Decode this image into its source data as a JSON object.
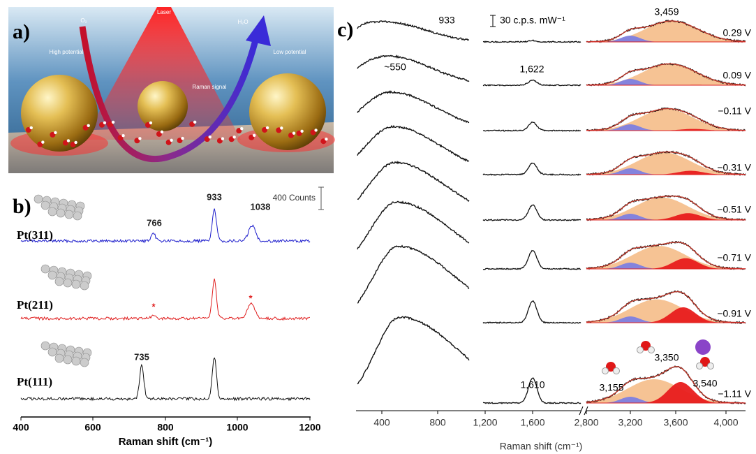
{
  "panel_a": {
    "label": "a)",
    "texts": {
      "o2": "O₂",
      "laser": "Laser",
      "h2o": "H₂O",
      "high_potential": "High potential",
      "low_potential": "Low potential",
      "raman_signal": "Raman signal"
    }
  },
  "panel_b": {
    "label": "b)",
    "scale_bar": "400 Counts",
    "x_axis": {
      "title": "Raman shift (cm⁻¹)",
      "ticks": [
        "400",
        "600",
        "800",
        "1000",
        "1200"
      ]
    },
    "spectra": [
      {
        "name": "Pt(311)",
        "peaks": [
          "766",
          "933",
          "1038"
        ]
      },
      {
        "name": "Pt(211)",
        "peaks": [
          "*",
          "*"
        ]
      },
      {
        "name": "Pt(111)",
        "peaks": [
          "735"
        ]
      }
    ]
  },
  "panel_c": {
    "label": "c)",
    "scale_bar": "30 c.p.s. mW⁻¹",
    "x_axis": {
      "title": "Raman shift (cm⁻¹)",
      "ticks": [
        "400",
        "800",
        "1,200",
        "1,600",
        "2,800",
        "3,200",
        "3,600",
        "4,000"
      ]
    },
    "potentials": [
      "0.29 V",
      "0.09 V",
      "−0.11 V",
      "−0.31 V",
      "−0.51 V",
      "−0.71 V",
      "−0.91 V",
      "−1.11 V"
    ],
    "peak_labels": [
      "933",
      "~550",
      "1,622",
      "1,610",
      "3,459",
      "3,350",
      "3,155",
      "3,540"
    ]
  }
}
